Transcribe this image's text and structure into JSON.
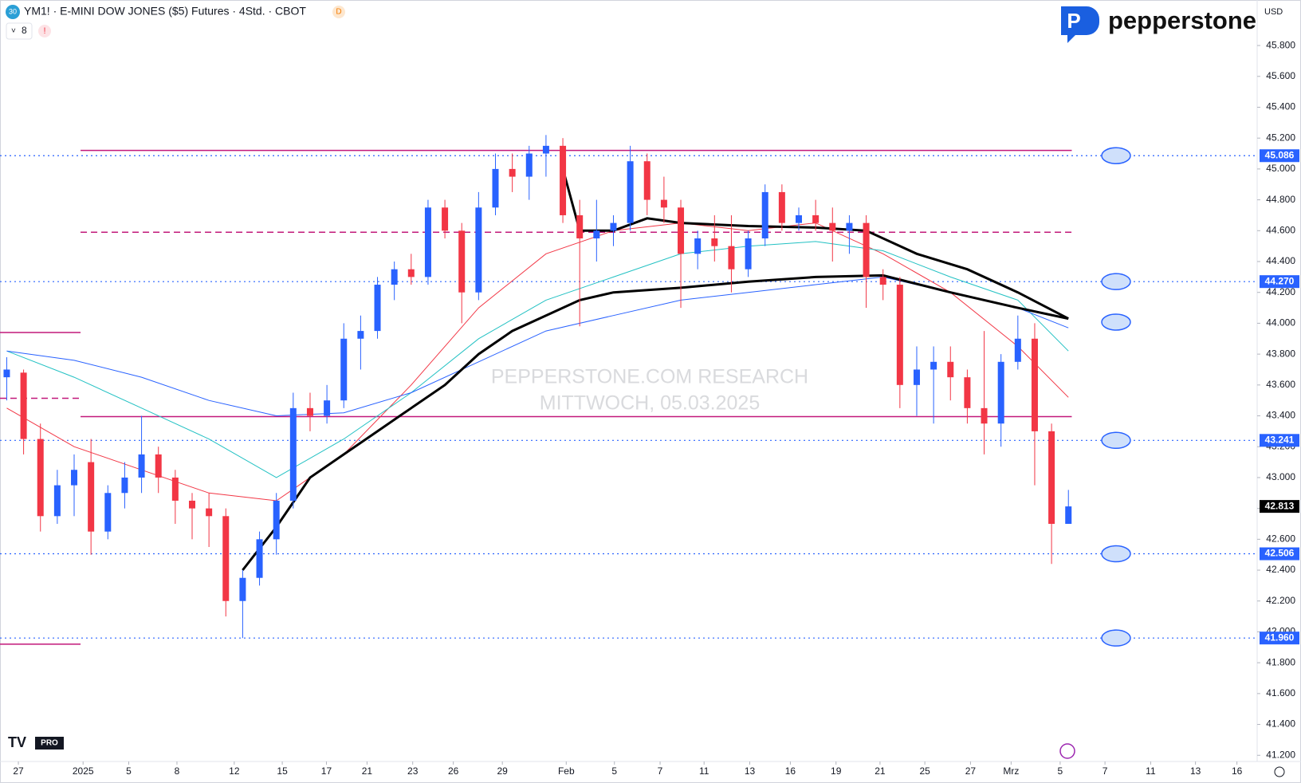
{
  "header": {
    "symbol_badge": "30",
    "title": "YM1! · E-MINI DOW JONES ($5) Futures · 4Std. · CBOT",
    "badge": "D",
    "indicator_count": "8",
    "alert": "!",
    "currency": "USD",
    "brand": "pepperstone",
    "tv_badge": "PRO"
  },
  "watermark": [
    "PEPPERSTONE.COM RESEARCH",
    "MITTWOCH, 05.03.2025"
  ],
  "chart_data": {
    "type": "candlestick",
    "up_color": "#2962ff",
    "down_color": "#f23645",
    "xlim": [
      -0.4,
      74.2
    ],
    "ylim": [
      41160,
      46095
    ],
    "xticks": [
      {
        "value": 0.69,
        "label": "27"
      },
      {
        "value": 4.53,
        "label": "2025"
      },
      {
        "value": 7.24,
        "label": "5"
      },
      {
        "value": 10.1,
        "label": "8"
      },
      {
        "value": 13.5,
        "label": "12"
      },
      {
        "value": 16.35,
        "label": "15"
      },
      {
        "value": 18.97,
        "label": "17"
      },
      {
        "value": 21.38,
        "label": "21"
      },
      {
        "value": 24.09,
        "label": "23"
      },
      {
        "value": 26.5,
        "label": "26"
      },
      {
        "value": 29.41,
        "label": "29"
      },
      {
        "value": 33.2,
        "label": "Feb"
      },
      {
        "value": 36.06,
        "label": "5"
      },
      {
        "value": 38.77,
        "label": "7"
      },
      {
        "value": 41.38,
        "label": "11"
      },
      {
        "value": 44.09,
        "label": "13"
      },
      {
        "value": 46.5,
        "label": "16"
      },
      {
        "value": 49.21,
        "label": "19"
      },
      {
        "value": 51.82,
        "label": "21"
      },
      {
        "value": 54.48,
        "label": "25"
      },
      {
        "value": 57.19,
        "label": "27"
      },
      {
        "value": 59.6,
        "label": "Mrz"
      },
      {
        "value": 62.51,
        "label": "5"
      },
      {
        "value": 65.17,
        "label": "7"
      },
      {
        "value": 67.88,
        "label": "11"
      },
      {
        "value": 70.54,
        "label": "13"
      },
      {
        "value": 73.0,
        "label": "16"
      }
    ],
    "yticks": [
      {
        "value": 41200,
        "label": "41.200"
      },
      {
        "value": 41400,
        "label": "41.400"
      },
      {
        "value": 41600,
        "label": "41.600"
      },
      {
        "value": 41800,
        "label": "41.800"
      },
      {
        "value": 42000,
        "label": "42.000"
      },
      {
        "value": 42200,
        "label": "42.200"
      },
      {
        "value": 42400,
        "label": "42.400"
      },
      {
        "value": 42600,
        "label": "42.600"
      },
      {
        "value": 42800,
        "label": "42.800"
      },
      {
        "value": 43000,
        "label": "43.000"
      },
      {
        "value": 43200,
        "label": "43.200"
      },
      {
        "value": 43400,
        "label": "43.400"
      },
      {
        "value": 43600,
        "label": "43.600"
      },
      {
        "value": 43800,
        "label": "43.800"
      },
      {
        "value": 44000,
        "label": "44.000"
      },
      {
        "value": 44200,
        "label": "44.200"
      },
      {
        "value": 44400,
        "label": "44.400"
      },
      {
        "value": 44600,
        "label": "44.600"
      },
      {
        "value": 44800,
        "label": "44.800"
      },
      {
        "value": 45000,
        "label": "45.000"
      },
      {
        "value": 45200,
        "label": "45.200"
      },
      {
        "value": 45400,
        "label": "45.400"
      },
      {
        "value": 45600,
        "label": "45.600"
      },
      {
        "value": 45800,
        "label": "45.800"
      }
    ],
    "x": [
      0,
      1,
      2,
      3,
      4,
      5,
      6,
      7,
      8,
      9,
      10,
      11,
      12,
      13,
      14,
      15,
      16,
      17,
      18,
      19,
      20,
      21,
      22,
      23,
      24,
      25,
      26,
      27,
      28,
      29,
      30,
      31,
      32,
      33,
      34,
      35,
      36,
      37,
      38,
      39,
      40,
      41,
      42,
      43,
      44,
      45,
      46,
      47,
      48,
      49,
      50,
      51,
      52,
      53,
      54,
      55,
      56,
      57,
      58,
      59,
      60,
      61,
      62,
      63
    ],
    "open": [
      43650,
      43680,
      43250,
      42750,
      42950,
      43100,
      42650,
      42900,
      43000,
      43150,
      43000,
      42850,
      42800,
      42750,
      42200,
      42350,
      42600,
      42850,
      43450,
      43400,
      43500,
      43900,
      43950,
      44250,
      44350,
      44300,
      44750,
      44600,
      44200,
      44750,
      45000,
      44950,
      45100,
      45150,
      44700,
      44550,
      44600,
      44650,
      45050,
      44800,
      44750,
      44450,
      44550,
      44500,
      44350,
      44550,
      44850,
      44650,
      44700,
      44650,
      44600,
      44650,
      44300,
      44250,
      43600,
      43700,
      43750,
      43650,
      43450,
      43350,
      43750,
      43900,
      43300,
      42700
    ],
    "high": [
      43780,
      43700,
      43350,
      43050,
      43150,
      43250,
      42950,
      43100,
      43400,
      43200,
      43050,
      42900,
      42900,
      42800,
      42400,
      42650,
      42900,
      43550,
      43550,
      43600,
      44000,
      44050,
      44300,
      44400,
      44450,
      44800,
      44800,
      44650,
      44850,
      45100,
      45100,
      45150,
      45220,
      45200,
      44800,
      44800,
      44700,
      45150,
      45100,
      44950,
      44800,
      44600,
      44700,
      44700,
      44600,
      44900,
      44900,
      44750,
      44800,
      44750,
      44700,
      44700,
      44350,
      44300,
      43850,
      43850,
      43850,
      43700,
      43950,
      43800,
      44050,
      44000,
      43350,
      42920
    ],
    "low": [
      43500,
      43150,
      42650,
      42700,
      42750,
      42500,
      42600,
      42800,
      42900,
      42900,
      42700,
      42600,
      42550,
      42100,
      41960,
      42300,
      42500,
      42800,
      43300,
      43350,
      43450,
      43700,
      43900,
      44150,
      44250,
      44250,
      44550,
      44000,
      44150,
      44700,
      44850,
      44800,
      44950,
      44650,
      43980,
      44400,
      44500,
      44600,
      44700,
      44650,
      44100,
      44350,
      44400,
      44200,
      44300,
      44500,
      44600,
      44600,
      44600,
      44400,
      44450,
      44100,
      44150,
      43450,
      43400,
      43350,
      43500,
      43350,
      43150,
      43200,
      43700,
      42950,
      42440,
      42700
    ],
    "close": [
      43700,
      43250,
      42750,
      42950,
      43050,
      42650,
      42900,
      43000,
      43150,
      43000,
      42850,
      42800,
      42750,
      42200,
      42350,
      42600,
      42850,
      43450,
      43400,
      43500,
      43900,
      43950,
      44250,
      44350,
      44300,
      44750,
      44600,
      44200,
      44750,
      45000,
      44950,
      45100,
      45150,
      44700,
      44550,
      44600,
      44650,
      45050,
      44800,
      44750,
      44450,
      44550,
      44500,
      44350,
      44550,
      44850,
      44650,
      44700,
      44650,
      44600,
      44650,
      44300,
      44250,
      43600,
      43700,
      43750,
      43650,
      43450,
      43350,
      43750,
      43900,
      43300,
      42700,
      42813
    ],
    "lines": [
      {
        "color": "#f23645",
        "width": 1,
        "x": [
          0,
          4,
          8,
          12,
          16,
          20,
          24,
          28,
          32,
          36,
          40,
          44,
          48,
          52,
          56,
          60,
          63
        ],
        "values": [
          43450,
          43200,
          43050,
          42900,
          42850,
          43150,
          43600,
          44100,
          44450,
          44600,
          44650,
          44600,
          44650,
          44450,
          44200,
          43850,
          43520
        ]
      },
      {
        "color": "#22c1c3",
        "width": 1,
        "x": [
          0,
          4,
          8,
          12,
          16,
          20,
          24,
          28,
          32,
          36,
          40,
          44,
          48,
          52,
          56,
          60,
          63
        ],
        "values": [
          43820,
          43650,
          43450,
          43250,
          43000,
          43250,
          43550,
          43900,
          44150,
          44300,
          44450,
          44500,
          44530,
          44470,
          44300,
          44150,
          43820
        ]
      },
      {
        "color": "#2962ff",
        "width": 1,
        "x": [
          0,
          4,
          8,
          12,
          16,
          20,
          24,
          28,
          32,
          36,
          40,
          44,
          48,
          52,
          56,
          60,
          63
        ],
        "values": [
          43820,
          43760,
          43650,
          43500,
          43400,
          43420,
          43550,
          43750,
          43950,
          44050,
          44150,
          44200,
          44250,
          44300,
          44200,
          44100,
          43970
        ]
      },
      {
        "color": "#000000",
        "width": 3,
        "x": [
          14,
          16,
          18,
          20,
          22,
          24,
          26,
          28,
          30,
          32,
          34,
          36,
          40,
          44,
          48,
          52,
          56,
          60,
          63
        ],
        "values": [
          42400,
          42680,
          43000,
          43150,
          43300,
          43450,
          43600,
          43800,
          43950,
          44050,
          44150,
          44200,
          44230,
          44270,
          44300,
          44310,
          44200,
          44100,
          44030
        ]
      },
      {
        "color": "#000000",
        "width": 3,
        "x": [
          33,
          34,
          36,
          38,
          40,
          44,
          48,
          51,
          54,
          57,
          60,
          63
        ],
        "values": [
          45000,
          44600,
          44600,
          44680,
          44650,
          44630,
          44620,
          44600,
          44450,
          44350,
          44200,
          44030
        ]
      }
    ],
    "zones": [
      {
        "value": 45120,
        "from": 4.38,
        "to": 63.2,
        "dashed": false
      },
      {
        "value": 44590,
        "from": 4.38,
        "to": 63.2,
        "dashed": true
      },
      {
        "value": 43395,
        "from": 4.38,
        "to": 63.2,
        "dashed": false
      },
      {
        "value": 43940,
        "from": -0.4,
        "to": 4.38,
        "dashed": false
      },
      {
        "value": 43514,
        "from": -0.4,
        "to": 4.38,
        "dashed": true
      },
      {
        "value": 41920,
        "from": -0.4,
        "to": 4.38,
        "dashed": false
      }
    ],
    "zone_color": "#c2187a",
    "level_color": "#2962ff",
    "levels": [
      {
        "value": 45086,
        "label": "45.086"
      },
      {
        "value": 44270,
        "label": "44.270"
      },
      {
        "value": 43241,
        "label": "43.241"
      },
      {
        "value": 42506,
        "label": "42.506"
      },
      {
        "value": 41960,
        "label": "41.960"
      }
    ],
    "last": {
      "value": 42813,
      "label": "42.813"
    }
  }
}
